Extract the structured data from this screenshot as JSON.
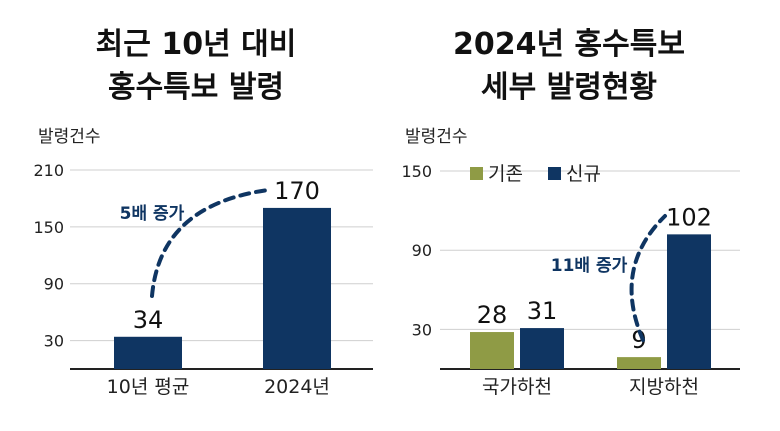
{
  "colors": {
    "navy": "#0f3562",
    "olive": "#8f9b45",
    "grid": "#cfcfcf"
  },
  "chart_data": [
    {
      "type": "bar",
      "title_lines": [
        "최근 10년 대비",
        "홍수특보 발령"
      ],
      "ylabel": "발령건수",
      "ylim": [
        0,
        210
      ],
      "yticks": [
        30,
        90,
        150,
        210
      ],
      "grid": true,
      "categories": [
        "10년 평균",
        "2024년"
      ],
      "series": [
        {
          "values": [
            34,
            170
          ],
          "color": "#0f3562"
        }
      ],
      "annotation": {
        "text": "5배 증가",
        "from_category": "10년 평균",
        "to_category": "2024년"
      }
    },
    {
      "type": "bar",
      "title_lines": [
        "2024년 홍수특보",
        "세부 발령현황"
      ],
      "ylabel": "발령건수",
      "ylim": [
        0,
        150
      ],
      "yticks": [
        30,
        90,
        150
      ],
      "grid": true,
      "legend": "top-left",
      "categories": [
        "국가하천",
        "지방하천"
      ],
      "series": [
        {
          "name": "기존",
          "values": [
            28,
            9
          ],
          "color": "#8f9b45"
        },
        {
          "name": "신규",
          "values": [
            31,
            102
          ],
          "color": "#0f3562"
        }
      ],
      "annotation": {
        "text": "11배 증가",
        "from_category": "지방하천",
        "to_category": "지방하천"
      }
    }
  ]
}
